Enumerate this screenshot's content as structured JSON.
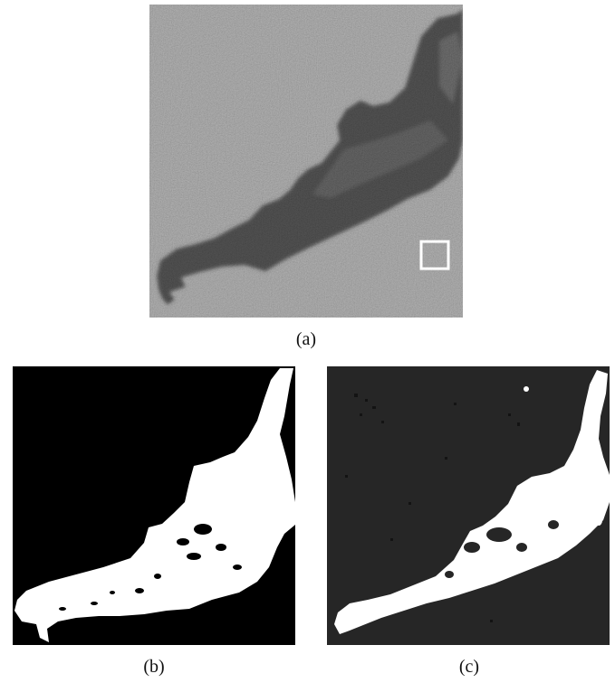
{
  "figure": {
    "panels": [
      {
        "id": "a",
        "label": "(a)",
        "kind": "grayscale SAR image with dark slick"
      },
      {
        "id": "b",
        "label": "(b)",
        "kind": "binary segmentation, black background"
      },
      {
        "id": "c",
        "label": "(c)",
        "kind": "binary segmentation, dark gray background"
      }
    ]
  },
  "colors": {
    "sea_gray": "#8f8f8f",
    "slick_dark": "#3f3f3f",
    "selection_box": "#ffffff",
    "seg_background_b": "#000000",
    "seg_background_c": "#262626",
    "seg_foreground": "#ffffff"
  }
}
